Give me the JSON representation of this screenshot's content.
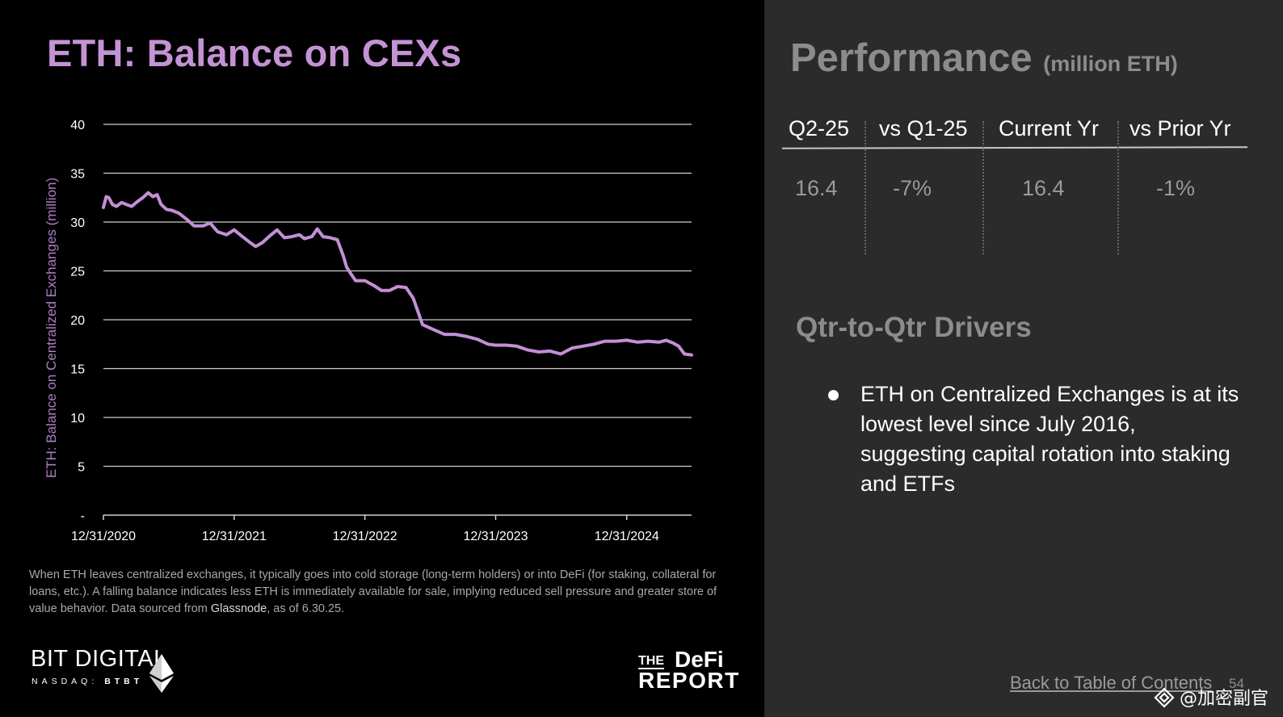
{
  "slide": {
    "title": "ETH: Balance on CEXs",
    "footnote_part1": "When ETH leaves centralized exchanges, it typically goes into cold storage (long-term holders) or into DeFi (for staking, collateral for loans, etc.). A falling balance indicates less ETH is immediately available for sale, implying reduced sell pressure and greater store of value behavior. Data sourced from ",
    "footnote_source": "Glassnode",
    "footnote_part2": ", as of 6.30.25.",
    "logo_left_main": "BIT DIGITAL",
    "logo_left_sub_exchange": "NASDAQ:",
    "logo_left_sub_ticker": "BTBT",
    "logo_right_the": "THE",
    "logo_right_defi": "DeFi",
    "logo_right_report": "REPORT",
    "back_link": "Back to Table of Contents",
    "page_number": "54",
    "watermark": "@加密副官"
  },
  "performance": {
    "title": "Performance",
    "unit": "(million ETH)",
    "headers": [
      "Q2-25",
      "vs Q1-25",
      "Current Yr",
      "vs Prior Yr"
    ],
    "values": [
      "16.4",
      "-7%",
      "16.4",
      "-1%"
    ]
  },
  "drivers": {
    "title": "Qtr-to-Qtr Drivers",
    "bullets": [
      "ETH on Centralized Exchanges is at its lowest level since July 2016, suggesting capital rotation into staking and ETFs"
    ]
  },
  "colors": {
    "accent": "#c493d4",
    "line": "#c38fd6",
    "right_panel_bg": "#2b2b2b",
    "gray_text": "#8c8c8c"
  },
  "chart_data": {
    "type": "line",
    "title": "",
    "xlabel": "",
    "ylabel": "ETH: Balance on Centralized Exchanges (million)",
    "ylim": [
      0,
      40
    ],
    "yticks": [
      0,
      5,
      10,
      15,
      20,
      25,
      30,
      35,
      40
    ],
    "ytick_labels": [
      "-",
      "5",
      "10",
      "15",
      "20",
      "25",
      "30",
      "35",
      "40"
    ],
    "xlim": [
      "2020-12-31",
      "2025-06-30"
    ],
    "xticks": [
      "2020-12-31",
      "2021-12-31",
      "2022-12-31",
      "2023-12-31",
      "2024-12-31"
    ],
    "xtick_labels": [
      "12/31/2020",
      "12/31/2021",
      "12/31/2022",
      "12/31/2023",
      "12/31/2024"
    ],
    "grid": true,
    "legend": "none",
    "series": [
      {
        "name": "",
        "x": [
          "2020-12-31",
          "2021-01-08",
          "2021-01-15",
          "2021-01-25",
          "2021-02-05",
          "2021-02-20",
          "2021-03-05",
          "2021-03-20",
          "2021-04-05",
          "2021-04-20",
          "2021-05-05",
          "2021-05-18",
          "2021-05-30",
          "2021-06-10",
          "2021-06-25",
          "2021-07-10",
          "2021-07-30",
          "2021-08-20",
          "2021-09-10",
          "2021-10-05",
          "2021-10-25",
          "2021-11-15",
          "2021-12-10",
          "2021-12-31",
          "2022-01-20",
          "2022-02-10",
          "2022-03-01",
          "2022-03-20",
          "2022-04-10",
          "2022-04-30",
          "2022-05-20",
          "2022-06-10",
          "2022-07-01",
          "2022-07-15",
          "2022-08-05",
          "2022-08-20",
          "2022-09-05",
          "2022-09-25",
          "2022-10-15",
          "2022-11-01",
          "2022-11-10",
          "2022-11-20",
          "2022-12-05",
          "2022-12-31",
          "2023-01-25",
          "2023-02-15",
          "2023-03-10",
          "2023-04-01",
          "2023-04-25",
          "2023-05-15",
          "2023-06-10",
          "2023-07-10",
          "2023-08-10",
          "2023-09-10",
          "2023-10-10",
          "2023-11-10",
          "2023-12-10",
          "2023-12-31",
          "2024-01-30",
          "2024-02-28",
          "2024-03-30",
          "2024-04-30",
          "2024-05-30",
          "2024-06-30",
          "2024-07-31",
          "2024-08-31",
          "2024-09-30",
          "2024-10-31",
          "2024-11-30",
          "2024-12-31",
          "2025-01-31",
          "2025-02-28",
          "2025-03-31",
          "2025-04-20",
          "2025-05-10",
          "2025-05-25",
          "2025-06-10",
          "2025-06-30"
        ],
        "values": [
          31.5,
          32.6,
          32.5,
          31.8,
          31.6,
          32.0,
          31.8,
          31.6,
          32.1,
          32.5,
          33.0,
          32.6,
          32.8,
          31.8,
          31.3,
          31.2,
          30.9,
          30.3,
          29.6,
          29.6,
          29.9,
          29.0,
          28.7,
          29.2,
          28.6,
          28.0,
          27.5,
          27.9,
          28.6,
          29.2,
          28.4,
          28.5,
          28.7,
          28.3,
          28.5,
          29.3,
          28.5,
          28.4,
          28.2,
          26.5,
          25.4,
          24.8,
          24.0,
          24.0,
          23.5,
          23.0,
          23.0,
          23.4,
          23.3,
          22.2,
          19.5,
          19.0,
          18.5,
          18.5,
          18.3,
          18.0,
          17.5,
          17.4,
          17.4,
          17.3,
          16.9,
          16.7,
          16.8,
          16.5,
          17.1,
          17.3,
          17.5,
          17.8,
          17.8,
          17.9,
          17.7,
          17.8,
          17.7,
          17.9,
          17.6,
          17.3,
          16.5,
          16.4
        ]
      }
    ]
  }
}
